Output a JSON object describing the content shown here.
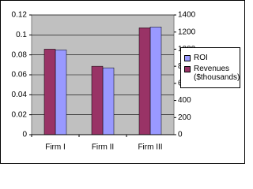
{
  "chart_data": {
    "type": "bar",
    "categories": [
      "Firm I",
      "Firm II",
      "Firm III"
    ],
    "series": [
      {
        "name": "ROI",
        "color": "#9999FF",
        "values": [
          0.085,
          0.067,
          0.108
        ]
      },
      {
        "name": "Revenues ($thousands)",
        "color": "#993366",
        "axis": "y2",
        "values": [
          1000,
          800,
          1250
        ]
      }
    ],
    "ylim": [
      0,
      0.12
    ],
    "yticks": [
      0,
      0.02,
      0.04,
      0.06,
      0.08,
      0.1,
      0.12
    ],
    "y2lim": [
      0,
      1400
    ],
    "y2ticks": [
      0,
      200,
      400,
      600,
      800,
      1000,
      1200,
      1400
    ],
    "grid": true,
    "legend": "right"
  }
}
